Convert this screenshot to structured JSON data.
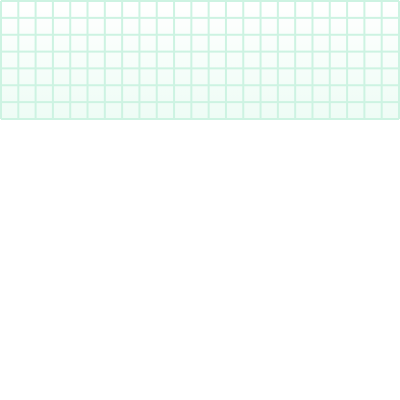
{
  "grid": {
    "columns": 23,
    "rows": 7,
    "line_color": "#cdf3e2",
    "fill_top_color": "#ffffff",
    "fill_bottom_color": "#eefcf5",
    "background_color": "#ffffff"
  }
}
